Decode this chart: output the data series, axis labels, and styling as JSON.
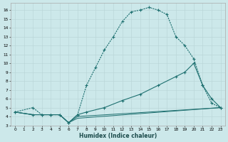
{
  "xlabel": "Humidex (Indice chaleur)",
  "bg_color": "#cce8ea",
  "grid_color": "#b8d4d6",
  "line_color": "#1e7070",
  "xlim": [
    -0.5,
    23.5
  ],
  "ylim": [
    3,
    16.8
  ],
  "xtick_vals": [
    0,
    1,
    2,
    3,
    4,
    5,
    6,
    7,
    8,
    9,
    10,
    11,
    12,
    13,
    14,
    15,
    16,
    17,
    18,
    19,
    20,
    21,
    22,
    23
  ],
  "ytick_vals": [
    3,
    4,
    5,
    6,
    7,
    8,
    9,
    10,
    11,
    12,
    13,
    14,
    15,
    16
  ],
  "line1_x": [
    0,
    2,
    3,
    4,
    5,
    6,
    7,
    8,
    9,
    10,
    11,
    12,
    13,
    14,
    15,
    16,
    17,
    18,
    19,
    20,
    21,
    22,
    23
  ],
  "line1_y": [
    4.5,
    5.0,
    4.2,
    4.2,
    4.2,
    3.3,
    4.2,
    7.5,
    9.5,
    11.5,
    13.0,
    14.7,
    15.8,
    16.0,
    16.3,
    16.0,
    15.5,
    13.0,
    12.0,
    10.5,
    7.5,
    5.5,
    5.0
  ],
  "line2_x": [
    0,
    2,
    3,
    4,
    5,
    6,
    7,
    8,
    10,
    12,
    14,
    16,
    18,
    19,
    20,
    21,
    22,
    23
  ],
  "line2_y": [
    4.5,
    4.2,
    4.2,
    4.2,
    4.2,
    3.3,
    4.2,
    4.5,
    5.0,
    5.8,
    6.5,
    7.5,
    8.5,
    9.0,
    10.0,
    7.5,
    6.0,
    5.0
  ],
  "line3_x": [
    0,
    2,
    3,
    4,
    5,
    6,
    7,
    23
  ],
  "line3_y": [
    4.5,
    4.2,
    4.2,
    4.2,
    4.2,
    3.3,
    4.0,
    5.0
  ],
  "line4_x": [
    0,
    2,
    3,
    4,
    5,
    6,
    7,
    23
  ],
  "line4_y": [
    4.5,
    4.2,
    4.2,
    4.2,
    4.2,
    3.3,
    3.8,
    5.0
  ]
}
